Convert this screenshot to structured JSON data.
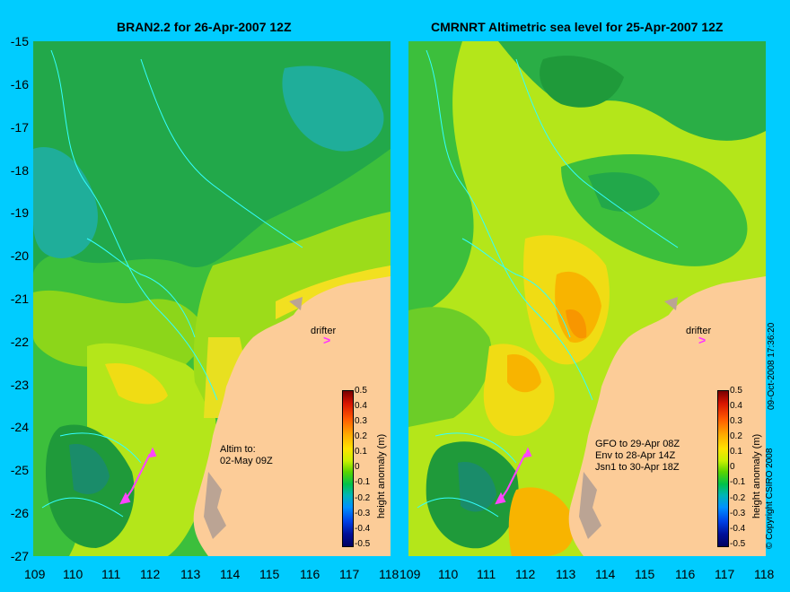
{
  "left_panel": {
    "title": "BRAN2.2 for 26-Apr-2007 12Z",
    "annotation": "Altim to:\n02-May 09Z",
    "drifter_label": "drifter",
    "drifter_symbol": ">"
  },
  "right_panel": {
    "title": "CMRNRT Altimetric sea level  for 25-Apr-2007 12Z",
    "annotation": "GFO to 29-Apr 08Z\nEnv to 28-Apr 14Z\nJsn1 to 30-Apr 18Z",
    "drifter_label": "drifter",
    "drifter_symbol": ">"
  },
  "y_axis": {
    "ticks": [
      "-15",
      "-16",
      "-17",
      "-18",
      "-19",
      "-20",
      "-21",
      "-22",
      "-23",
      "-24",
      "-25",
      "-26",
      "-27"
    ]
  },
  "x_axis": {
    "ticks": [
      "109",
      "110",
      "111",
      "112",
      "113",
      "114",
      "115",
      "116",
      "117",
      "118"
    ]
  },
  "colorbar": {
    "label": "height anomaly (m)",
    "ticks": [
      "0.5",
      "0.4",
      "0.3",
      "0.2",
      "0.1",
      "0",
      "-0.1",
      "-0.2",
      "-0.3",
      "-0.4",
      "-0.5"
    ]
  },
  "timestamp": "09-Oct-2008 17:36:20",
  "copyright": "© Copyright CSIRO 2008"
}
